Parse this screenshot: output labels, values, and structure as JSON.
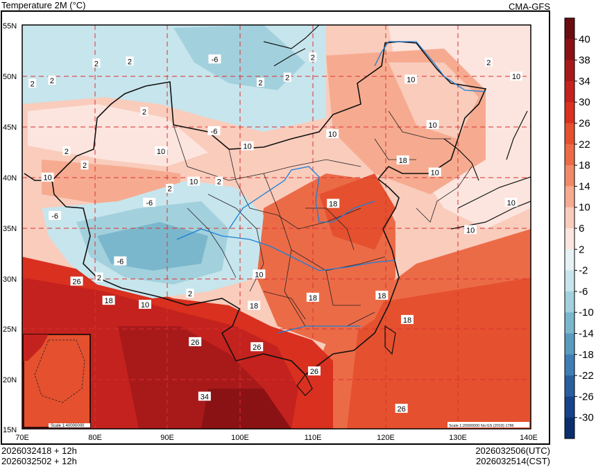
{
  "header": {
    "title": "Temperature  2M (°C)",
    "model": "CMA-GFS"
  },
  "footer": {
    "init_a": "2026032418 + 12h",
    "init_b": "2026032502 + 12h",
    "valid_utc": "2026032506(UTC)",
    "valid_cst": "2026032514(CST)"
  },
  "map": {
    "lon_labels": [
      "70E",
      "80E",
      "90E",
      "100E",
      "110E",
      "120E",
      "130E",
      "140E"
    ],
    "lat_labels": [
      "55N",
      "50N",
      "45N",
      "40N",
      "35N",
      "30N",
      "25N",
      "20N",
      "15N"
    ],
    "scale_main": "Scale 1:20000000 No:GS (2019) 1786",
    "scale_inset": "Scale 1:40000000",
    "contour_labels": [
      {
        "text": "-6",
        "lon": 96.5,
        "lat": 51.6
      },
      {
        "text": "2",
        "lon": 80.2,
        "lat": 51.2
      },
      {
        "text": "2",
        "lon": 84.8,
        "lat": 51.4
      },
      {
        "text": "2",
        "lon": 71.4,
        "lat": 49.2
      },
      {
        "text": "2",
        "lon": 74.1,
        "lat": 49.5
      },
      {
        "text": "2",
        "lon": 102.8,
        "lat": 49.3
      },
      {
        "text": "2",
        "lon": 106.5,
        "lat": 49.8
      },
      {
        "text": "2",
        "lon": 110.0,
        "lat": 51.8
      },
      {
        "text": "2",
        "lon": 86.8,
        "lat": 46.4
      },
      {
        "text": "-6",
        "lon": 96.4,
        "lat": 44.5
      },
      {
        "text": "10",
        "lon": 101.0,
        "lat": 43.0
      },
      {
        "text": "10",
        "lon": 112.7,
        "lat": 44.2
      },
      {
        "text": "10",
        "lon": 123.5,
        "lat": 49.6
      },
      {
        "text": "10",
        "lon": 126.5,
        "lat": 45.1
      },
      {
        "text": "2",
        "lon": 134.2,
        "lat": 51.3
      },
      {
        "text": "10",
        "lon": 138.0,
        "lat": 49.9
      },
      {
        "text": "2",
        "lon": 76.1,
        "lat": 42.5
      },
      {
        "text": "10",
        "lon": 89.1,
        "lat": 42.5
      },
      {
        "text": "2",
        "lon": 78.6,
        "lat": 41.1
      },
      {
        "text": "10",
        "lon": 73.5,
        "lat": 39.9
      },
      {
        "text": "10",
        "lon": 93.6,
        "lat": 39.5
      },
      {
        "text": "2",
        "lon": 97.1,
        "lat": 39.5
      },
      {
        "text": "2",
        "lon": 90.3,
        "lat": 38.8
      },
      {
        "text": "-6",
        "lon": 87.5,
        "lat": 37.4
      },
      {
        "text": "-6",
        "lon": 74.5,
        "lat": 36.1
      },
      {
        "text": "18",
        "lon": 112.8,
        "lat": 37.3
      },
      {
        "text": "18",
        "lon": 122.4,
        "lat": 41.6
      },
      {
        "text": "10",
        "lon": 126.8,
        "lat": 40.4
      },
      {
        "text": "10",
        "lon": 137.3,
        "lat": 37.4
      },
      {
        "text": "10",
        "lon": 131.7,
        "lat": 34.7
      },
      {
        "text": "-6",
        "lon": 83.5,
        "lat": 31.6
      },
      {
        "text": "26",
        "lon": 77.5,
        "lat": 29.6
      },
      {
        "text": "2",
        "lon": 80.6,
        "lat": 30.0
      },
      {
        "text": "10",
        "lon": 102.6,
        "lat": 30.3
      },
      {
        "text": "18",
        "lon": 81.9,
        "lat": 27.7
      },
      {
        "text": "10",
        "lon": 86.9,
        "lat": 27.3
      },
      {
        "text": "2",
        "lon": 93.1,
        "lat": 28.4
      },
      {
        "text": "18",
        "lon": 101.9,
        "lat": 27.2
      },
      {
        "text": "18",
        "lon": 110.0,
        "lat": 28.0
      },
      {
        "text": "18",
        "lon": 119.5,
        "lat": 28.2
      },
      {
        "text": "18",
        "lon": 123.0,
        "lat": 25.8
      },
      {
        "text": "26",
        "lon": 93.8,
        "lat": 23.6
      },
      {
        "text": "26",
        "lon": 102.3,
        "lat": 23.1
      },
      {
        "text": "26",
        "lon": 110.2,
        "lat": 20.7
      },
      {
        "text": "34",
        "lon": 95.1,
        "lat": 18.2
      },
      {
        "text": "26",
        "lon": 122.2,
        "lat": 17.0
      }
    ]
  },
  "colorbar": {
    "labels": [
      "40",
      "38",
      "34",
      "30",
      "26",
      "22",
      "18",
      "14",
      "10",
      "6",
      "2",
      "-2",
      "-6",
      "-10",
      "-14",
      "-18",
      "-22",
      "-26",
      "-30"
    ],
    "colors": [
      "#6a0d10",
      "#8b1214",
      "#a81a1a",
      "#c4221e",
      "#d9301f",
      "#e5502f",
      "#ec6b47",
      "#f18a68",
      "#f6ab90",
      "#f9ccbc",
      "#fce5de",
      "#e6f2f5",
      "#c7e5ec",
      "#a2d1dd",
      "#7bb7cc",
      "#5b9bbf",
      "#3f7eb4",
      "#2a5f9f",
      "#18438a",
      "#0b2e6e"
    ]
  }
}
